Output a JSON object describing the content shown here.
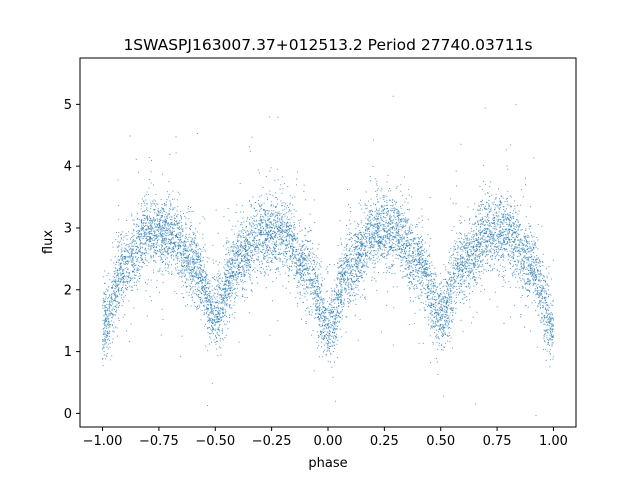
{
  "chart_data": {
    "type": "scatter",
    "title": "1SWASPJ163007.37+012513.2 Period 27740.03711s",
    "xlabel": "phase",
    "ylabel": "flux",
    "xlim": [
      -1.1,
      1.1
    ],
    "ylim": [
      -0.22,
      5.75
    ],
    "xticks": [
      -1.0,
      -0.75,
      -0.5,
      -0.25,
      0.0,
      0.25,
      0.5,
      0.75,
      1.0
    ],
    "xtick_labels": [
      "−1.00",
      "−0.75",
      "−0.50",
      "−0.25",
      "0.00",
      "0.25",
      "0.50",
      "0.75",
      "1.00"
    ],
    "yticks": [
      0,
      1,
      2,
      3,
      4,
      5
    ],
    "ytick_labels": [
      "0",
      "1",
      "2",
      "3",
      "4",
      "5"
    ],
    "grid": false,
    "marker_color": "#1f77b4",
    "series": [
      {
        "x": [
          -1.0,
          -0.9,
          -0.8,
          -0.75,
          -0.7,
          -0.6,
          -0.5,
          -0.4,
          -0.3,
          -0.25,
          -0.2,
          -0.1,
          0.0,
          0.1,
          0.2,
          0.25,
          0.3,
          0.4,
          0.5,
          0.6,
          0.7,
          0.75,
          0.8,
          0.9,
          1.0
        ],
        "y": [
          1.4,
          2.4,
          2.9,
          2.95,
          2.9,
          2.45,
          1.6,
          2.45,
          2.9,
          2.95,
          2.9,
          2.4,
          1.4,
          2.4,
          2.9,
          2.95,
          2.9,
          2.45,
          1.6,
          2.45,
          2.9,
          2.95,
          2.9,
          2.4,
          1.4
        ],
        "spread": 0.3
      }
    ]
  }
}
